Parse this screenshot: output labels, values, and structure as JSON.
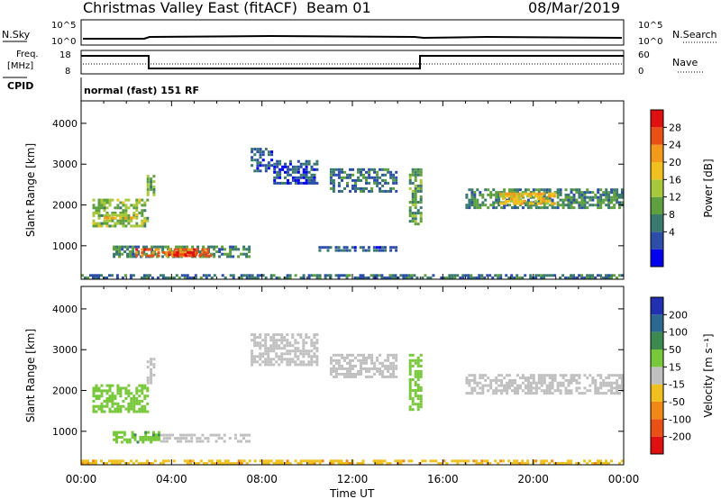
{
  "header": {
    "title": "Christmas Valley East (fitACF)",
    "beam": "Beam 01",
    "date": "08/Mar/2019"
  },
  "top_panel": {
    "nsky_label": "N.Sky",
    "nsky_ticks": [
      "10^5",
      "10^0"
    ],
    "nsearch_label": "N.Search",
    "nsearch_ticks": [
      "10^5",
      "10^0"
    ],
    "freq_label_1": "Freq.",
    "freq_label_2": "[MHz]",
    "freq_ticks": [
      "18",
      "8"
    ],
    "nave_label": "Nave",
    "nave_ticks": [
      "60",
      "0"
    ],
    "cpid_label": "CPID",
    "cpid_text": "normal (fast) 151 RF"
  },
  "colors": {
    "power": [
      "#0000ee",
      "#2c4ea8",
      "#3a7a6e",
      "#5ea040",
      "#a6c83a",
      "#f0c020",
      "#f39a1c",
      "#e85018",
      "#e01010"
    ],
    "velocity_pos": [
      "#2030b0",
      "#2c6890",
      "#3d8a50",
      "#78c83c"
    ],
    "velocity_ground": "#c0c0c0",
    "velocity_neg": [
      "#f0c020",
      "#f08818",
      "#e85018",
      "#e01010"
    ]
  },
  "chart_data": [
    {
      "type": "heatmap",
      "name": "Power",
      "ylabel": "Slant Range [km]",
      "colorbar_label": "Power [dB]",
      "colorbar_ticks": [
        "28",
        "24",
        "20",
        "16",
        "12",
        "8",
        "4"
      ],
      "colorbar_range": [
        0,
        32
      ],
      "y_ticks": [
        "4000",
        "3000",
        "2000",
        "1000"
      ],
      "ylim": [
        180,
        4550
      ],
      "xlim": [
        0,
        24
      ],
      "regions": [
        {
          "t0": 0.5,
          "t1": 3.0,
          "r0": 1450,
          "r1": 2150,
          "val": 14
        },
        {
          "t0": 1.0,
          "t1": 2.5,
          "r0": 1650,
          "r1": 1800,
          "val": 20
        },
        {
          "t0": 1.4,
          "t1": 7.5,
          "r0": 700,
          "r1": 1000,
          "val": 10
        },
        {
          "t0": 2.4,
          "t1": 5.8,
          "r0": 720,
          "r1": 950,
          "val": 26
        },
        {
          "t0": 3.6,
          "t1": 5.5,
          "r0": 750,
          "r1": 850,
          "val": 28
        },
        {
          "t0": 2.9,
          "t1": 3.3,
          "r0": 2150,
          "r1": 2800,
          "val": 14
        },
        {
          "t0": 7.5,
          "t1": 8.5,
          "r0": 2800,
          "r1": 3400,
          "val": 6
        },
        {
          "t0": 8.5,
          "t1": 10.5,
          "r0": 2500,
          "r1": 3100,
          "val": 6
        },
        {
          "t0": 11.0,
          "t1": 14.0,
          "r0": 2300,
          "r1": 2900,
          "val": 8
        },
        {
          "t0": 10.5,
          "t1": 14.0,
          "r0": 850,
          "r1": 1000,
          "val": 6
        },
        {
          "t0": 14.5,
          "t1": 15.1,
          "r0": 1500,
          "r1": 2900,
          "val": 12
        },
        {
          "t0": 17.0,
          "t1": 24.0,
          "r0": 1900,
          "r1": 2400,
          "val": 10
        },
        {
          "t0": 18.5,
          "t1": 21.0,
          "r0": 2000,
          "r1": 2300,
          "val": 20
        },
        {
          "t0": 0.0,
          "t1": 24.0,
          "r0": 180,
          "r1": 300,
          "val": 8
        }
      ]
    },
    {
      "type": "heatmap",
      "name": "Velocity",
      "ylabel": "Slant Range [km]",
      "colorbar_label": "Velocity [m s⁻¹]",
      "colorbar_ticks": [
        "200",
        "100",
        "50",
        "15",
        "-15",
        "-50",
        "-100",
        "-200"
      ],
      "y_ticks": [
        "4000",
        "3000",
        "2000",
        "1000"
      ],
      "ylim": [
        180,
        4550
      ],
      "xlim": [
        0,
        24
      ],
      "regions": [
        {
          "t0": 0.5,
          "t1": 3.0,
          "r0": 1450,
          "r1": 2150,
          "val": 30
        },
        {
          "t0": 1.4,
          "t1": 3.5,
          "r0": 700,
          "r1": 1000,
          "val": 40
        },
        {
          "t0": 3.5,
          "t1": 7.5,
          "r0": 720,
          "r1": 950,
          "val": 0
        },
        {
          "t0": 2.9,
          "t1": 3.3,
          "r0": 2150,
          "r1": 2800,
          "val": 0
        },
        {
          "t0": 7.5,
          "t1": 10.5,
          "r0": 2600,
          "r1": 3400,
          "val": 0
        },
        {
          "t0": 11.0,
          "t1": 14.0,
          "r0": 2300,
          "r1": 2900,
          "val": 0
        },
        {
          "t0": 14.5,
          "t1": 15.1,
          "r0": 1500,
          "r1": 2900,
          "val": 30
        },
        {
          "t0": 17.0,
          "t1": 24.0,
          "r0": 1900,
          "r1": 2400,
          "val": 0
        },
        {
          "t0": 0.0,
          "t1": 24.0,
          "r0": 180,
          "r1": 300,
          "val": -40
        }
      ]
    }
  ],
  "x_axis": {
    "ticks": [
      "00:00",
      "04:00",
      "08:00",
      "12:00",
      "16:00",
      "20:00",
      "00:00"
    ],
    "label": "Time UT"
  }
}
